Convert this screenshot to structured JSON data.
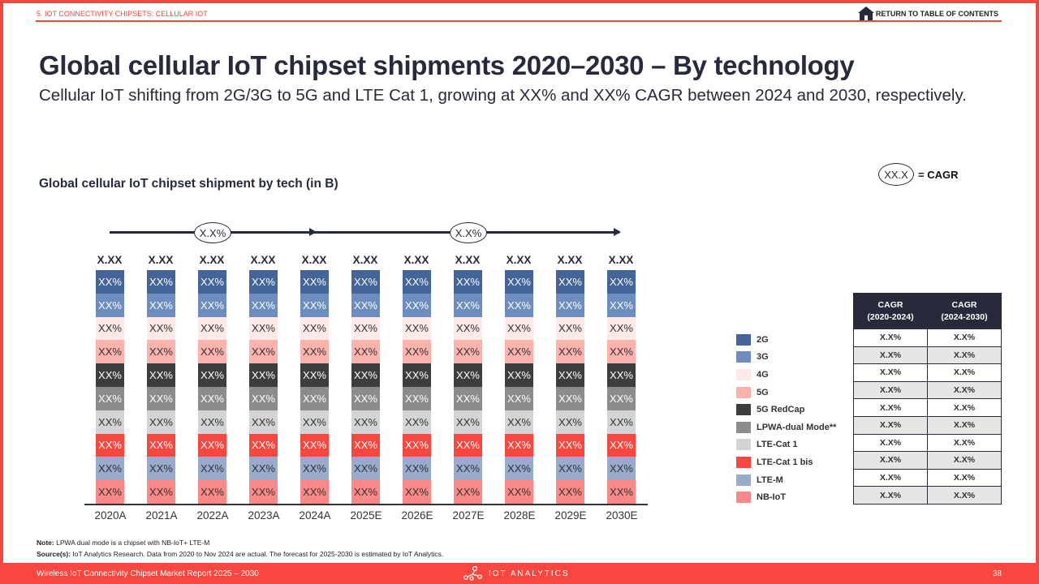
{
  "header": {
    "section_label": "5. IOT CONNECTIVITY CHIPSETS: CELLULAR IOT",
    "toc_link": "RETURN TO TABLE OF CONTENTS"
  },
  "page": {
    "title": "Global cellular IoT chipset shipments 2020–2030 – By technology",
    "subtitle": "Cellular IoT shifting from 2G/3G to 5G and LTE Cat 1, growing at XX% and XX% CAGR between 2024 and 2030, respectively."
  },
  "cagr_key": {
    "oval": "XX.X",
    "label": "= CAGR"
  },
  "arrows": [
    {
      "label": "X.X%",
      "from": "2020A",
      "to": "2024A"
    },
    {
      "label": "X.X%",
      "from": "2024A",
      "to": "2030E"
    }
  ],
  "legend": [
    {
      "label": "2G",
      "color": "#44659a"
    },
    {
      "label": "3G",
      "color": "#6d8dbe"
    },
    {
      "label": "4G",
      "color": "#fde9e8"
    },
    {
      "label": "5G",
      "color": "#fcb3ae"
    },
    {
      "label": "5G RedCap",
      "color": "#3d3d3d"
    },
    {
      "label": "LPWA-dual Mode**",
      "color": "#8c8c8e"
    },
    {
      "label": "LTE-Cat 1",
      "color": "#d4d4d6"
    },
    {
      "label": "LTE-Cat 1 bis",
      "color": "#f7473e"
    },
    {
      "label": "LTE-M",
      "color": "#98abcc"
    },
    {
      "label": "NB-IoT",
      "color": "#fb8987"
    }
  ],
  "chart_data": {
    "type": "bar",
    "stacked": true,
    "normalized": true,
    "title": "Global cellular IoT chipset shipment by tech (in B)",
    "xlabel": "",
    "ylabel": "",
    "categories": [
      "2020A",
      "2021A",
      "2022A",
      "2023A",
      "2024A",
      "2025E",
      "2026E",
      "2027E",
      "2028E",
      "2029E",
      "2030E"
    ],
    "totals_labels": [
      "X.XX",
      "X.XX",
      "X.XX",
      "X.XX",
      "X.XX",
      "X.XX",
      "X.XX",
      "X.XX",
      "X.XX",
      "X.XX",
      "X.XX"
    ],
    "series_order_top_to_bottom": [
      "2G",
      "3G",
      "4G",
      "5G",
      "5G RedCap",
      "LPWA-dual Mode**",
      "LTE-Cat 1",
      "LTE-Cat 1 bis",
      "LTE-M",
      "NB-IoT"
    ],
    "series": [
      {
        "name": "2G",
        "color": "#44659a",
        "text_color": "#ffffff",
        "values": [
          10,
          10,
          10,
          10,
          10,
          10,
          10,
          10,
          10,
          10,
          10
        ],
        "labels": [
          "XX%",
          "XX%",
          "XX%",
          "XX%",
          "XX%",
          "XX%",
          "XX%",
          "XX%",
          "XX%",
          "XX%",
          "XX%"
        ]
      },
      {
        "name": "3G",
        "color": "#6d8dbe",
        "text_color": "#ffffff",
        "values": [
          10,
          10,
          10,
          10,
          10,
          10,
          10,
          10,
          10,
          10,
          10
        ],
        "labels": [
          "XX%",
          "XX%",
          "XX%",
          "XX%",
          "XX%",
          "XX%",
          "XX%",
          "XX%",
          "XX%",
          "XX%",
          "XX%"
        ]
      },
      {
        "name": "4G",
        "color": "#fde9e8",
        "text_color": "#333333",
        "values": [
          10,
          10,
          10,
          10,
          10,
          10,
          10,
          10,
          10,
          10,
          10
        ],
        "labels": [
          "XX%",
          "XX%",
          "XX%",
          "XX%",
          "XX%",
          "XX%",
          "XX%",
          "XX%",
          "XX%",
          "XX%",
          "XX%"
        ]
      },
      {
        "name": "5G",
        "color": "#fcb3ae",
        "text_color": "#333333",
        "values": [
          10,
          10,
          10,
          10,
          10,
          10,
          10,
          10,
          10,
          10,
          10
        ],
        "labels": [
          "XX%",
          "XX%",
          "XX%",
          "XX%",
          "XX%",
          "XX%",
          "XX%",
          "XX%",
          "XX%",
          "XX%",
          "XX%"
        ]
      },
      {
        "name": "5G RedCap",
        "color": "#3d3d3d",
        "text_color": "#ffffff",
        "values": [
          10,
          10,
          10,
          10,
          10,
          10,
          10,
          10,
          10,
          10,
          10
        ],
        "labels": [
          "XX%",
          "XX%",
          "XX%",
          "XX%",
          "XX%",
          "XX%",
          "XX%",
          "XX%",
          "XX%",
          "XX%",
          "XX%"
        ]
      },
      {
        "name": "LPWA-dual Mode**",
        "color": "#8c8c8e",
        "text_color": "#ffffff",
        "values": [
          10,
          10,
          10,
          10,
          10,
          10,
          10,
          10,
          10,
          10,
          10
        ],
        "labels": [
          "XX%",
          "XX%",
          "XX%",
          "XX%",
          "XX%",
          "XX%",
          "XX%",
          "XX%",
          "XX%",
          "XX%",
          "XX%"
        ]
      },
      {
        "name": "LTE-Cat 1",
        "color": "#d4d4d6",
        "text_color": "#333333",
        "values": [
          10,
          10,
          10,
          10,
          10,
          10,
          10,
          10,
          10,
          10,
          10
        ],
        "labels": [
          "XX%",
          "XX%",
          "XX%",
          "XX%",
          "XX%",
          "XX%",
          "XX%",
          "XX%",
          "XX%",
          "XX%",
          "XX%"
        ]
      },
      {
        "name": "LTE-Cat 1 bis",
        "color": "#f7473e",
        "text_color": "#ffffff",
        "values": [
          10,
          10,
          10,
          10,
          10,
          10,
          10,
          10,
          10,
          10,
          10
        ],
        "labels": [
          "XX%",
          "XX%",
          "XX%",
          "XX%",
          "XX%",
          "XX%",
          "XX%",
          "XX%",
          "XX%",
          "XX%",
          "XX%"
        ]
      },
      {
        "name": "LTE-M",
        "color": "#98abcc",
        "text_color": "#333333",
        "values": [
          10,
          10,
          10,
          10,
          10,
          10,
          10,
          10,
          10,
          10,
          10
        ],
        "labels": [
          "XX%",
          "XX%",
          "XX%",
          "XX%",
          "XX%",
          "XX%",
          "XX%",
          "XX%",
          "XX%",
          "XX%",
          "XX%"
        ]
      },
      {
        "name": "NB-IoT",
        "color": "#fb8987",
        "text_color": "#333333",
        "values": [
          10,
          10,
          10,
          10,
          10,
          10,
          10,
          10,
          10,
          10,
          10
        ],
        "labels": [
          "XX%",
          "XX%",
          "XX%",
          "XX%",
          "XX%",
          "XX%",
          "XX%",
          "XX%",
          "XX%",
          "XX%",
          "XX%"
        ]
      }
    ],
    "annotations": [
      {
        "type": "cagr-arrow",
        "text": "X.X%",
        "from": "2020A",
        "to": "2024A"
      },
      {
        "type": "cagr-arrow",
        "text": "X.X%",
        "from": "2024A",
        "to": "2030E"
      }
    ],
    "grid": false,
    "legend_position": "right"
  },
  "cagr_table": {
    "headers": [
      "CAGR\n(2020-2024)",
      "CAGR\n(2024-2030)"
    ],
    "rows": [
      {
        "tech": "2G",
        "c1": "X.X%",
        "c2": "X.X%"
      },
      {
        "tech": "3G",
        "c1": "X.X%",
        "c2": "X.X%"
      },
      {
        "tech": "4G",
        "c1": "X.X%",
        "c2": "X.X%"
      },
      {
        "tech": "5G",
        "c1": "X.X%",
        "c2": "X.X%"
      },
      {
        "tech": "5G RedCap",
        "c1": "X.X%",
        "c2": "X.X%"
      },
      {
        "tech": "LPWA-dual Mode**",
        "c1": "X.X%",
        "c2": "X.X%"
      },
      {
        "tech": "LTE-Cat 1",
        "c1": "X.X%",
        "c2": "X.X%"
      },
      {
        "tech": "LTE-Cat 1 bis",
        "c1": "X.X%",
        "c2": "X.X%"
      },
      {
        "tech": "LTE-M",
        "c1": "X.X%",
        "c2": "X.X%"
      },
      {
        "tech": "NB-IoT",
        "c1": "X.X%",
        "c2": "X.X%"
      }
    ]
  },
  "notes": {
    "note_label": "Note:",
    "note_text": " LPWA dual mode is a chipset with NB-IoT+ LTE-M",
    "source_label": "Source(s):",
    "source_text": " IoT Analytics Research. Data from 2020 to Nov 2024 are actual. The forecast for 2025-2030 is estimated by IoT Analytics."
  },
  "footer": {
    "report_title": "Wireless IoT Connectivity Chipset Market Report 2025 – 2030",
    "brand": "IOT ANALYTICS",
    "page_number": "38"
  }
}
